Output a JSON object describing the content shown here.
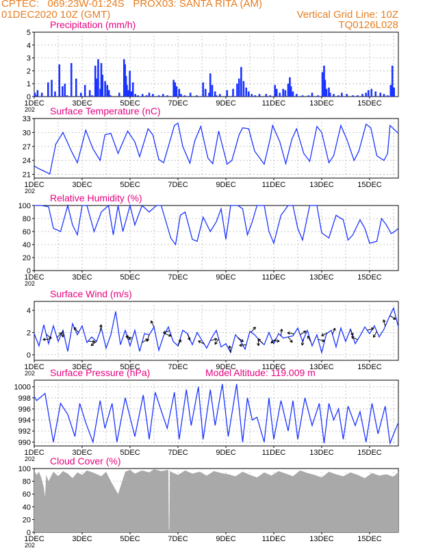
{
  "header": {
    "line1_left": "CPTEC:   069:23W-01:24S   PROX03: SANTA RITA (AM)",
    "line2_left": "01DEC2020 10Z (GMT)",
    "line2_right": "Vertical Grid Line: 10Z",
    "line3_right": "TQ0126L028"
  },
  "colors": {
    "header": "#e67e22",
    "title": "#e6007e",
    "series": "#1a33ff",
    "cloud": "#a9a9a9",
    "grid": "#b4b4b4"
  },
  "x_axis": {
    "tick_labels": [
      "1DEC",
      "3DEC",
      "5DEC",
      "7DEC",
      "9DEC",
      "11DEC",
      "13DEC",
      "15DEC"
    ],
    "tick_days": [
      1,
      3,
      5,
      7,
      9,
      11,
      13,
      15
    ],
    "range_days": [
      1,
      16.2
    ],
    "partial_year_label": "202"
  },
  "chart_data": [
    {
      "type": "bar",
      "title": "Precipitation (mm/h)",
      "ylim": [
        0,
        5
      ],
      "yticks": [
        "0",
        "1",
        "2",
        "3",
        "4",
        "5"
      ],
      "grid": true,
      "x": [
        1.03,
        1.08,
        1.14,
        1.32,
        1.58,
        1.73,
        1.87,
        2.05,
        2.18,
        2.28,
        2.37,
        2.55,
        2.75,
        2.95,
        3.12,
        3.32,
        3.42,
        3.55,
        3.6,
        3.67,
        3.76,
        3.8,
        3.85,
        3.96,
        4.05,
        4.12,
        4.18,
        4.55,
        4.75,
        4.79,
        4.83,
        4.87,
        4.93,
        4.99,
        5.05,
        5.12,
        5.22,
        5.33,
        5.52,
        5.69,
        5.8,
        5.95,
        6.2,
        6.38,
        6.56,
        6.82,
        6.88,
        6.94,
        7.05,
        7.13,
        7.28,
        7.52,
        7.78,
        8.05,
        8.15,
        8.3,
        8.35,
        8.43,
        8.55,
        8.6,
        8.75,
        9.05,
        9.3,
        9.47,
        9.55,
        9.64,
        9.74,
        9.85,
        9.95,
        10.08,
        10.22,
        10.4,
        10.68,
        10.85,
        11.05,
        11.12,
        11.25,
        11.39,
        11.48,
        11.6,
        11.67,
        11.72,
        11.8,
        11.95,
        12.2,
        12.45,
        12.6,
        12.85,
        13.03,
        13.1,
        13.14,
        13.2,
        13.3,
        13.35,
        13.5,
        13.7,
        13.84,
        14.05,
        14.3,
        14.5,
        14.7,
        14.85,
        14.95,
        15.08,
        15.25,
        15.45,
        15.6,
        15.75,
        15.88,
        15.95,
        16.02
      ],
      "values": [
        0.3,
        0.1,
        0.5,
        0.3,
        1.1,
        1.3,
        0.4,
        2.5,
        0.8,
        1.0,
        0.1,
        2.6,
        1.4,
        0.3,
        0.9,
        0.5,
        0.1,
        2.4,
        1.4,
        2.9,
        0.6,
        2.6,
        1.7,
        1.2,
        0.9,
        0.5,
        0.1,
        0.3,
        2.9,
        2.5,
        1.6,
        0.9,
        0.5,
        2.0,
        0.4,
        1.1,
        0.2,
        0.1,
        0.2,
        0.1,
        0.3,
        0.2,
        0.1,
        0.2,
        0.1,
        1.3,
        1.1,
        0.8,
        0.6,
        0.2,
        0.1,
        0.3,
        0.1,
        1.1,
        0.6,
        0.3,
        1.8,
        0.9,
        0.4,
        0.1,
        0.2,
        0.5,
        0.6,
        1.0,
        1.4,
        2.3,
        1.2,
        0.7,
        0.4,
        0.2,
        0.1,
        0.2,
        0.2,
        0.1,
        0.9,
        0.6,
        0.3,
        0.6,
        0.5,
        1.0,
        1.5,
        0.8,
        0.4,
        0.2,
        0.1,
        0.1,
        0.3,
        0.1,
        1.9,
        2.4,
        1.3,
        0.6,
        0.7,
        0.3,
        0.2,
        0.1,
        0.3,
        0.2,
        0.1,
        0.1,
        0.2,
        0.3,
        0.5,
        0.6,
        0.4,
        0.3,
        0.2,
        0.1,
        0.9,
        2.4,
        0.7
      ]
    },
    {
      "type": "line",
      "title": "Surface Temperature (nC)",
      "ylim": [
        20.2,
        33
      ],
      "yticks": [
        "21",
        "24",
        "27",
        "30",
        "33"
      ],
      "grid": true,
      "x": [
        1.0,
        1.2,
        1.45,
        1.65,
        1.9,
        2.2,
        2.55,
        2.8,
        3.15,
        3.45,
        3.75,
        3.95,
        4.2,
        4.5,
        4.9,
        5.2,
        5.4,
        5.75,
        5.95,
        6.2,
        6.4,
        6.6,
        6.85,
        7.0,
        7.2,
        7.5,
        7.7,
        7.95,
        8.25,
        8.45,
        8.7,
        9.05,
        9.25,
        9.55,
        9.7,
        9.95,
        10.2,
        10.6,
        10.85,
        10.95,
        11.25,
        11.5,
        11.75,
        11.95,
        12.25,
        12.5,
        12.8,
        13.0,
        13.3,
        13.5,
        13.8,
        14.05,
        14.35,
        14.55,
        14.85,
        15.05,
        15.3,
        15.6,
        15.75,
        15.85,
        16.2
      ],
      "values": [
        22.8,
        22.2,
        21.6,
        21.1,
        27.5,
        30.0,
        26.0,
        23.5,
        30.5,
        26.5,
        24.0,
        29.5,
        29.8,
        25.5,
        30.3,
        28.0,
        24.8,
        30.8,
        29.5,
        24.2,
        23.5,
        27.0,
        31.5,
        32.0,
        27.0,
        23.4,
        28.2,
        31.3,
        24.5,
        23.3,
        30.3,
        23.2,
        24.0,
        29.5,
        31.0,
        30.8,
        26.0,
        23.2,
        28.7,
        31.5,
        28.0,
        23.3,
        28.5,
        30.8,
        25.5,
        23.8,
        31.3,
        30.0,
        23.5,
        25.0,
        31.5,
        28.5,
        24.0,
        26.0,
        31.8,
        31.0,
        25.0,
        24.0,
        25.5,
        31.5,
        29.8
      ]
    },
    {
      "type": "line",
      "title": "Relative Humidity (%)",
      "ylim": [
        0,
        100
      ],
      "yticks": [
        "0",
        "20",
        "40",
        "60",
        "80",
        "100"
      ],
      "grid": true,
      "x": [
        1.0,
        1.3,
        1.6,
        1.8,
        2.1,
        2.4,
        2.6,
        2.8,
        3.0,
        3.2,
        3.5,
        3.8,
        4.1,
        4.3,
        4.5,
        4.7,
        5.0,
        5.2,
        5.5,
        5.8,
        6.1,
        6.3,
        6.7,
        6.9,
        7.1,
        7.3,
        7.6,
        7.8,
        8.05,
        8.35,
        8.6,
        8.8,
        9.0,
        9.2,
        9.5,
        9.7,
        9.9,
        10.1,
        10.3,
        10.6,
        10.8,
        11.0,
        11.3,
        11.6,
        11.8,
        12.0,
        12.2,
        12.5,
        12.8,
        13.0,
        13.3,
        13.6,
        13.9,
        14.1,
        14.3,
        14.6,
        14.8,
        15.0,
        15.3,
        15.5,
        15.7,
        15.9,
        16.05,
        16.2
      ],
      "values": [
        100,
        100,
        98,
        65,
        60,
        100,
        70,
        55,
        100,
        100,
        60,
        90,
        100,
        55,
        100,
        60,
        100,
        70,
        100,
        90,
        100,
        100,
        50,
        40,
        85,
        90,
        48,
        45,
        82,
        60,
        75,
        95,
        48,
        100,
        100,
        95,
        55,
        75,
        100,
        100,
        60,
        42,
        85,
        100,
        100,
        65,
        47,
        100,
        100,
        58,
        50,
        85,
        78,
        47,
        55,
        78,
        65,
        42,
        45,
        80,
        70,
        57,
        60,
        65
      ]
    },
    {
      "type": "line",
      "title": "Surface Wind (m/s)",
      "ylim": [
        -0.5,
        4.8
      ],
      "yticks": [
        "0",
        "2",
        "4"
      ],
      "grid": true,
      "x": [
        1.0,
        1.2,
        1.4,
        1.6,
        1.8,
        2.0,
        2.2,
        2.4,
        2.6,
        2.8,
        3.0,
        3.2,
        3.4,
        3.6,
        3.8,
        4.0,
        4.2,
        4.4,
        4.6,
        4.8,
        5.0,
        5.2,
        5.4,
        5.6,
        5.8,
        6.0,
        6.2,
        6.4,
        6.6,
        6.8,
        7.0,
        7.2,
        7.4,
        7.6,
        7.8,
        8.0,
        8.2,
        8.4,
        8.6,
        8.8,
        9.0,
        9.2,
        9.4,
        9.6,
        9.8,
        10.0,
        10.2,
        10.4,
        10.6,
        10.8,
        11.0,
        11.2,
        11.4,
        11.6,
        11.8,
        12.0,
        12.2,
        12.4,
        12.6,
        12.8,
        13.0,
        13.2,
        13.4,
        13.6,
        13.8,
        14.0,
        14.2,
        14.4,
        14.6,
        14.8,
        15.0,
        15.2,
        15.4,
        15.6,
        15.8,
        16.0,
        16.2
      ],
      "values": [
        1.9,
        0.8,
        2.7,
        1.0,
        2.6,
        1.2,
        2.2,
        0.3,
        2.8,
        1.8,
        2.6,
        1.1,
        1.6,
        1.2,
        2.4,
        0.6,
        1.8,
        3.9,
        0.9,
        2.2,
        0.8,
        2.2,
        0.3,
        1.9,
        1.8,
        2.5,
        0.4,
        1.7,
        2.5,
        1.2,
        0.8,
        2.2,
        1.9,
        0.9,
        2.0,
        1.3,
        0.6,
        1.5,
        2.2,
        0.7,
        1.0,
        0.2,
        1.8,
        1.3,
        0.5,
        2.1,
        1.8,
        1.3,
        0.9,
        2.0,
        1.0,
        1.9,
        1.5,
        1.6,
        1.7,
        2.4,
        1.2,
        2.2,
        0.8,
        1.8,
        0.2,
        1.9,
        2.2,
        0.7,
        2.4,
        1.2,
        2.3,
        1.0,
        1.7,
        2.5,
        1.9,
        2.6,
        1.6,
        2.3,
        3.3,
        4.2,
        2.5
      ],
      "vector_days": [
        1.5,
        1.65,
        1.95,
        2.2,
        2.85,
        3.25,
        3.6,
        3.75,
        4.85,
        5.1,
        5.5,
        5.8,
        6.0,
        6.45,
        6.65,
        7.0,
        7.4,
        8.1,
        8.35,
        8.7,
        9.2,
        9.5,
        9.85,
        10.05,
        10.35,
        10.55,
        10.95,
        11.1,
        11.3,
        11.6,
        11.85,
        12.1,
        12.25,
        12.55,
        12.85,
        13.25,
        13.45,
        14.2,
        14.5,
        14.9,
        15.3,
        15.65,
        15.85
      ]
    },
    {
      "type": "line",
      "title": "Surface Pressure (hPa)",
      "annotation": "Model Altitude: 119.009  m",
      "ylim": [
        989.3,
        1001.2
      ],
      "yticks": [
        "990",
        "992",
        "994",
        "996",
        "998",
        "1000"
      ],
      "grid": true,
      "x": [
        1.0,
        1.1,
        1.45,
        1.8,
        2.1,
        2.4,
        2.7,
        2.9,
        3.15,
        3.45,
        3.75,
        3.95,
        4.25,
        4.45,
        4.8,
        5.2,
        5.55,
        5.8,
        6.05,
        6.35,
        6.55,
        6.85,
        7.05,
        7.35,
        7.55,
        7.85,
        8.05,
        8.35,
        8.55,
        8.85,
        9.1,
        9.45,
        9.7,
        9.9,
        10.1,
        10.3,
        10.6,
        10.8,
        11.0,
        11.3,
        11.6,
        11.8,
        12.0,
        12.3,
        12.6,
        12.9,
        13.1,
        13.3,
        13.5,
        13.7,
        13.9,
        14.1,
        14.4,
        14.6,
        14.85,
        15.1,
        15.35,
        15.65,
        15.85,
        16.1,
        16.2
      ],
      "values": [
        998.3,
        997.5,
        998.8,
        990.0,
        997.0,
        995.0,
        991.0,
        997.0,
        993.5,
        990.0,
        997.5,
        992.5,
        997.0,
        990.0,
        998.0,
        991.0,
        998.5,
        990.5,
        999.0,
        995.0,
        992.5,
        999.0,
        990.5,
        999.5,
        993.0,
        1000.0,
        990.5,
        999.5,
        993.0,
        1000.5,
        991.0,
        1000.5,
        990.0,
        998.0,
        994.0,
        994.5,
        990.0,
        998.0,
        990.5,
        997.5,
        992.0,
        997.5,
        990.5,
        998.0,
        993.0,
        997.0,
        989.8,
        997.0,
        994.0,
        996.0,
        990.5,
        996.5,
        993.0,
        995.5,
        990.0,
        997.0,
        991.5,
        996.5,
        989.8,
        992.5,
        993.5
      ]
    },
    {
      "type": "area",
      "title": "Cloud Cover (%)",
      "ylim": [
        0,
        100
      ],
      "yticks": [
        "0",
        "20",
        "40",
        "60",
        "80",
        "100"
      ],
      "grid": true,
      "x": [
        1.0,
        1.1,
        1.2,
        1.3,
        1.4,
        1.45,
        1.5,
        1.6,
        1.8,
        2.0,
        2.2,
        2.4,
        2.6,
        2.8,
        3.0,
        3.2,
        3.5,
        3.8,
        4.0,
        4.2,
        4.5,
        4.8,
        5.0,
        5.2,
        5.5,
        5.8,
        6.0,
        6.3,
        6.6,
        6.62,
        6.64,
        6.66,
        6.7,
        7.0,
        7.3,
        7.6,
        7.9,
        8.2,
        8.5,
        8.8,
        9.1,
        9.4,
        9.7,
        10.0,
        10.3,
        10.6,
        10.9,
        11.2,
        11.5,
        11.8,
        12.1,
        12.4,
        12.7,
        13.0,
        13.3,
        13.6,
        13.9,
        14.2,
        14.5,
        14.8,
        15.1,
        15.4,
        15.7,
        16.0,
        16.2
      ],
      "values": [
        97,
        90,
        95,
        85,
        70,
        55,
        90,
        80,
        95,
        88,
        96,
        92,
        85,
        94,
        90,
        97,
        93,
        88,
        95,
        80,
        60,
        95,
        98,
        92,
        97,
        94,
        99,
        96,
        98,
        5,
        3,
        97,
        95,
        90,
        97,
        92,
        95,
        89,
        96,
        93,
        91,
        88,
        95,
        90,
        86,
        94,
        89,
        96,
        92,
        88,
        97,
        93,
        90,
        86,
        95,
        91,
        88,
        94,
        90,
        85,
        93,
        89,
        91,
        87,
        95
      ]
    }
  ]
}
